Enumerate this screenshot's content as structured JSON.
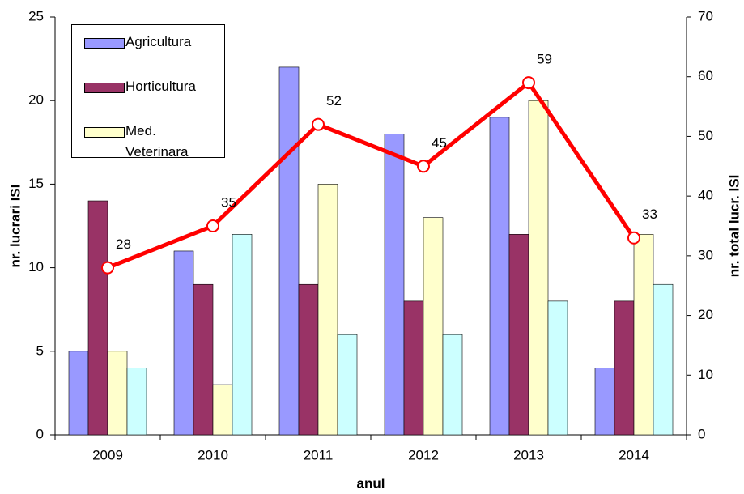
{
  "chart_data": {
    "type": "bar",
    "categories": [
      "2009",
      "2010",
      "2011",
      "2012",
      "2013",
      "2014"
    ],
    "series": [
      {
        "name": "Agricultura",
        "color": "#9999ff",
        "values": [
          5,
          11,
          22,
          18,
          19,
          4
        ]
      },
      {
        "name": "Horticultura",
        "color": "#993366",
        "values": [
          14,
          9,
          9,
          8,
          12,
          8
        ]
      },
      {
        "name": "Med. Veterinara",
        "color": "#ffffcc",
        "values": [
          5,
          3,
          15,
          13,
          20,
          12
        ]
      },
      {
        "color": "#ccffff",
        "values": [
          4,
          12,
          6,
          6,
          8,
          9
        ]
      },
      {
        "type": "line",
        "axis": "y2",
        "color": "#ff0000",
        "values": [
          28,
          35,
          52,
          45,
          59,
          33
        ]
      }
    ],
    "ylim": [
      0,
      25
    ],
    "yticks": [
      0,
      5,
      10,
      15,
      20,
      25
    ],
    "y2lim": [
      0,
      70
    ],
    "y2ticks": [
      0,
      10,
      20,
      30,
      40,
      50,
      60,
      70
    ],
    "xlabel": "anul",
    "ylabel": "nr. lucrari ISI",
    "y2label": "nr. total lucr. ISI",
    "legend": "upper left"
  }
}
